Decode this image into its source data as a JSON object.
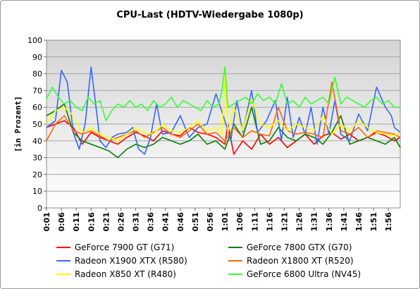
{
  "chart_data": {
    "type": "line",
    "title": "CPU-Last (HDTV-Wiedergabe 1080p)",
    "xlabel": "",
    "ylabel": "[in Prozent]",
    "ylim": [
      0,
      100
    ],
    "yticks": [
      0,
      10,
      20,
      30,
      40,
      50,
      60,
      70,
      80,
      90,
      100
    ],
    "grid": true,
    "legend_position": "bottom",
    "x_tick_labels": [
      "0:01",
      "0:06",
      "0:11",
      "0:16",
      "0:21",
      "0:26",
      "0:31",
      "0:36",
      "0:41",
      "0:46",
      "0:51",
      "0:56",
      "1:01",
      "1:06",
      "1:11",
      "1:16",
      "1:21",
      "1:26",
      "1:31",
      "1:36",
      "1:41",
      "1:46",
      "1:51",
      "1:56"
    ],
    "x_tick_seconds": [
      1,
      6,
      11,
      16,
      21,
      26,
      31,
      36,
      41,
      46,
      51,
      56,
      61,
      66,
      71,
      76,
      81,
      86,
      91,
      96,
      101,
      106,
      111,
      116
    ],
    "x_range_seconds": [
      1,
      120
    ],
    "series": [
      {
        "name": "GeForce 7900 GT (G71)",
        "color": "#ff0000",
        "x": [
          1,
          4,
          7,
          10,
          13,
          16,
          19,
          22,
          25,
          28,
          31,
          34,
          37,
          40,
          43,
          46,
          49,
          52,
          55,
          58,
          61,
          62,
          64,
          67,
          70,
          73,
          76,
          79,
          82,
          85,
          88,
          91,
          94,
          97,
          100,
          103,
          106,
          109,
          112,
          115,
          118,
          120
        ],
        "y": [
          48,
          50,
          52,
          48,
          38,
          45,
          42,
          40,
          38,
          42,
          45,
          43,
          40,
          46,
          44,
          43,
          48,
          45,
          44,
          42,
          38,
          50,
          32,
          40,
          35,
          44,
          38,
          42,
          36,
          40,
          44,
          38,
          43,
          45,
          41,
          44,
          40,
          42,
          45,
          43,
          40,
          42
        ]
      },
      {
        "name": "GeForce 7800 GTX (G70)",
        "color": "#008000",
        "x": [
          1,
          4,
          7,
          10,
          13,
          16,
          19,
          22,
          25,
          28,
          31,
          34,
          37,
          40,
          43,
          46,
          49,
          52,
          55,
          58,
          61,
          64,
          67,
          70,
          73,
          76,
          79,
          82,
          85,
          88,
          91,
          94,
          97,
          100,
          103,
          106,
          109,
          112,
          115,
          118,
          120
        ],
        "y": [
          55,
          58,
          62,
          45,
          40,
          38,
          36,
          34,
          30,
          35,
          38,
          36,
          38,
          42,
          40,
          38,
          40,
          44,
          38,
          40,
          35,
          50,
          42,
          60,
          38,
          40,
          48,
          42,
          40,
          44,
          42,
          38,
          45,
          55,
          38,
          40,
          42,
          40,
          38,
          42,
          36
        ]
      },
      {
        "name": "Radeon X1900 XTX (R580)",
        "color": "#3366ff",
        "x": [
          1,
          4,
          6,
          8,
          10,
          12,
          14,
          16,
          18,
          19,
          21,
          23,
          25,
          28,
          30,
          32,
          34,
          36,
          38,
          40,
          43,
          46,
          49,
          52,
          55,
          58,
          61,
          63,
          65,
          67,
          70,
          72,
          75,
          78,
          80,
          82,
          84,
          86,
          88,
          90,
          92,
          94,
          96,
          98,
          100,
          103,
          106,
          109,
          112,
          115,
          117,
          118,
          120
        ],
        "y": [
          48,
          52,
          82,
          75,
          45,
          35,
          50,
          84,
          55,
          40,
          36,
          42,
          44,
          45,
          48,
          35,
          32,
          42,
          62,
          44,
          45,
          55,
          42,
          48,
          50,
          68,
          52,
          40,
          64,
          45,
          70,
          45,
          52,
          64,
          40,
          66,
          42,
          54,
          44,
          60,
          38,
          60,
          44,
          64,
          44,
          40,
          56,
          46,
          72,
          60,
          55,
          48,
          45
        ]
      },
      {
        "name": "Radeon X1800 XT (R520)",
        "color": "#ff6600",
        "x": [
          1,
          4,
          7,
          10,
          13,
          16,
          19,
          22,
          25,
          28,
          31,
          34,
          37,
          40,
          43,
          46,
          49,
          52,
          55,
          58,
          61,
          64,
          67,
          70,
          73,
          76,
          79,
          82,
          85,
          88,
          91,
          94,
          97,
          100,
          103,
          106,
          109,
          112,
          115,
          118,
          120
        ],
        "y": [
          40,
          50,
          55,
          46,
          44,
          46,
          43,
          40,
          42,
          44,
          46,
          42,
          45,
          48,
          44,
          42,
          46,
          50,
          44,
          45,
          40,
          48,
          42,
          46,
          44,
          43,
          60,
          46,
          44,
          45,
          44,
          42,
          75,
          46,
          44,
          48,
          42,
          46,
          45,
          44,
          42
        ]
      },
      {
        "name": "Radeon X850 XT (R480)",
        "color": "#ffff00",
        "x": [
          1,
          4,
          7,
          10,
          13,
          16,
          19,
          22,
          25,
          28,
          31,
          34,
          37,
          40,
          43,
          46,
          49,
          52,
          55,
          58,
          60,
          61,
          62,
          64,
          67,
          70,
          73,
          76,
          79,
          82,
          85,
          88,
          91,
          94,
          97,
          100,
          103,
          106,
          109,
          112,
          115,
          118,
          120
        ],
        "y": [
          50,
          58,
          60,
          55,
          45,
          48,
          44,
          42,
          40,
          44,
          48,
          45,
          44,
          50,
          46,
          45,
          48,
          52,
          46,
          48,
          44,
          80,
          45,
          60,
          46,
          65,
          50,
          48,
          52,
          46,
          50,
          48,
          46,
          55,
          44,
          50,
          46,
          52,
          48,
          45,
          44,
          43,
          45
        ]
      },
      {
        "name": "GeForce 6800 Ultra (NV45)",
        "color": "#33ff33",
        "x": [
          1,
          3,
          5,
          7,
          9,
          11,
          13,
          15,
          17,
          19,
          21,
          23,
          25,
          27,
          29,
          31,
          33,
          35,
          37,
          39,
          41,
          43,
          45,
          47,
          49,
          51,
          53,
          55,
          57,
          59,
          60,
          61,
          62,
          64,
          66,
          68,
          70,
          72,
          74,
          76,
          78,
          80,
          82,
          84,
          86,
          88,
          90,
          92,
          94,
          96,
          98,
          100,
          102,
          104,
          106,
          108,
          110,
          112,
          114,
          116,
          118,
          120
        ],
        "y": [
          65,
          72,
          66,
          62,
          64,
          60,
          58,
          66,
          62,
          64,
          52,
          58,
          62,
          60,
          64,
          60,
          62,
          58,
          64,
          60,
          62,
          66,
          60,
          64,
          62,
          60,
          58,
          64,
          60,
          62,
          70,
          84,
          60,
          62,
          64,
          66,
          62,
          68,
          64,
          66,
          62,
          74,
          62,
          64,
          60,
          66,
          62,
          64,
          66,
          62,
          78,
          62,
          66,
          64,
          62,
          60,
          64,
          66,
          62,
          64,
          60,
          60
        ]
      }
    ]
  }
}
